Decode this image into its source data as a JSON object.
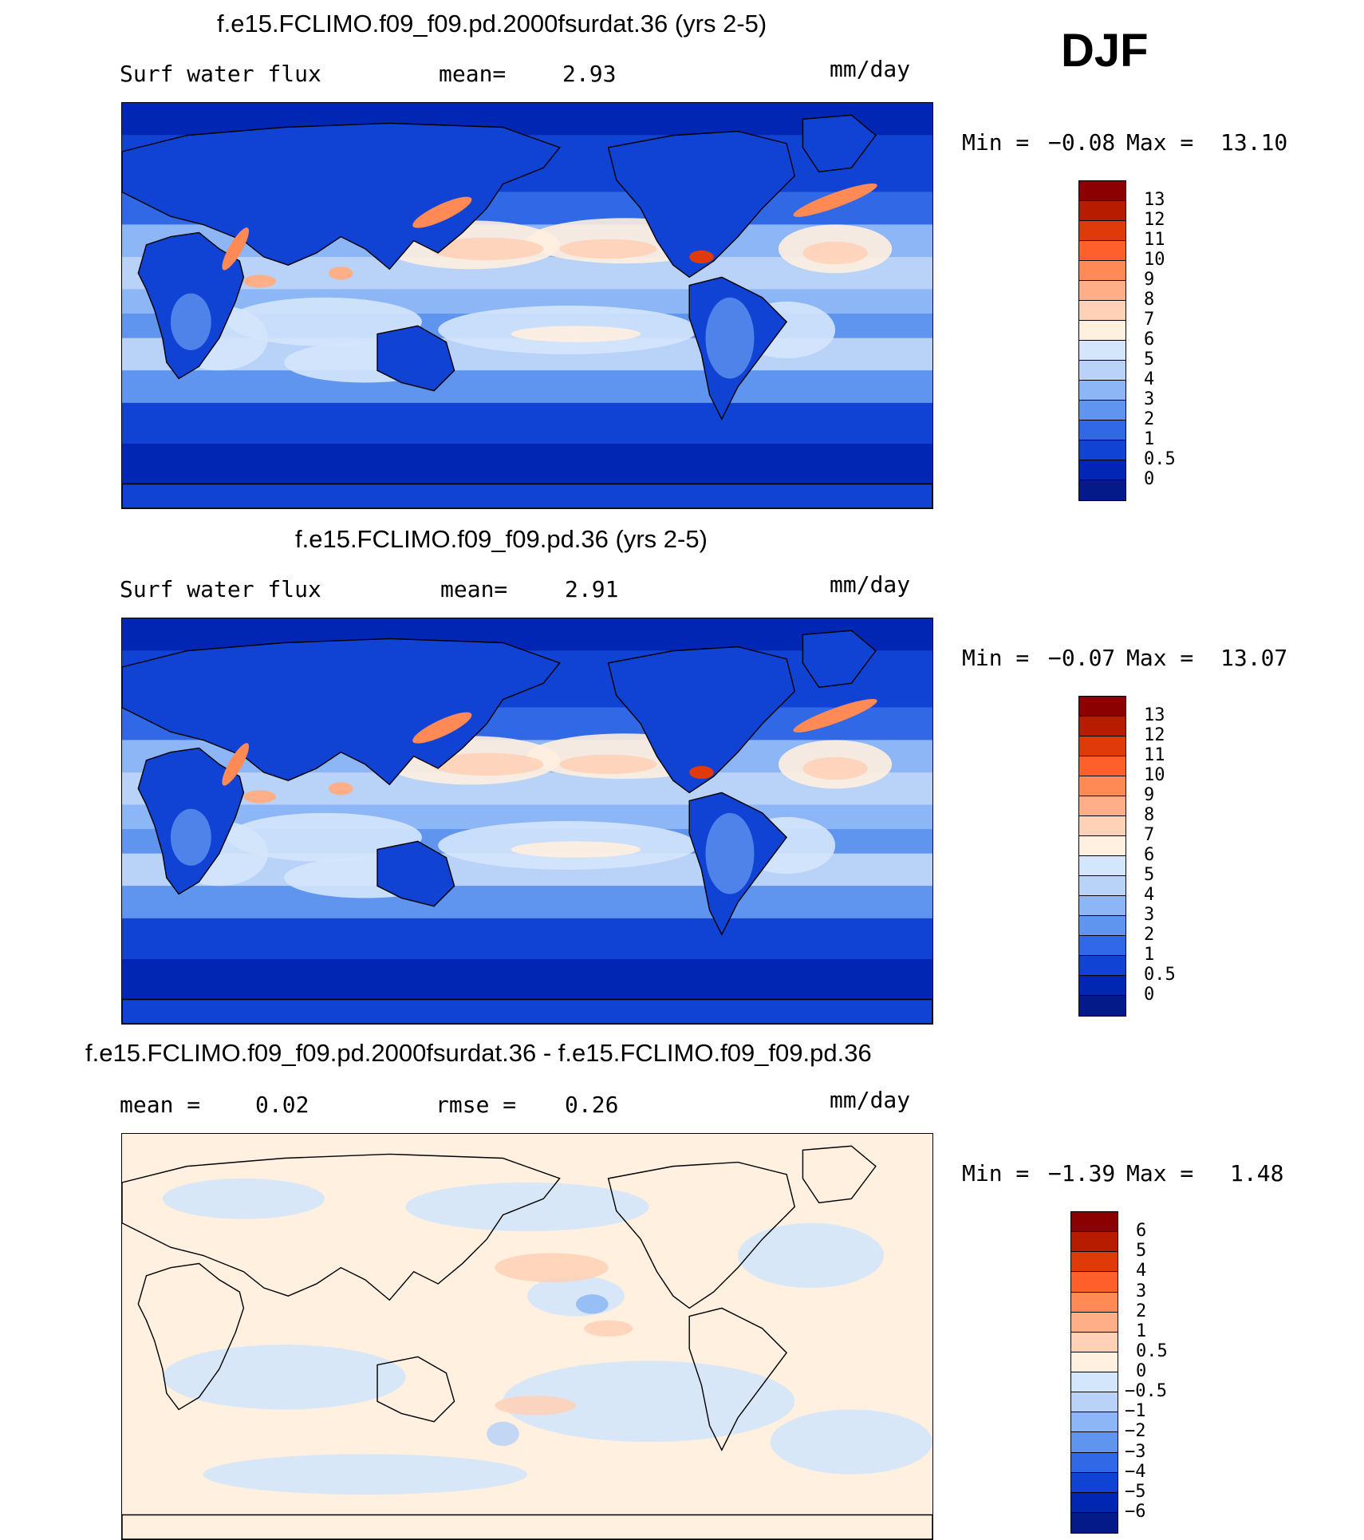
{
  "season": "DJF",
  "chart_data": [
    {
      "type": "heatmap",
      "title": "f.e15.FCLIMO.f09_f09.pd.2000fsurdat.36 (yrs 2-5)",
      "variable": "Surf water flux",
      "mean_label": "mean=",
      "mean_value": "2.93",
      "units": "mm/day",
      "min_label": "Min =",
      "min_value": "−0.08",
      "max_label": "Max =",
      "max_value": "13.10",
      "colorbar_levels": [
        "13",
        "12",
        "11",
        "10",
        "9",
        "8",
        "7",
        "6",
        "5",
        "4",
        "3",
        "2",
        "1",
        "0.5",
        "0"
      ],
      "colorbar_colors": [
        "#8b0000",
        "#b81c00",
        "#e03a0a",
        "#ff5f2a",
        "#ff8a55",
        "#ffaf88",
        "#ffd2b8",
        "#fff0e0",
        "#d4e6fb",
        "#b8d2f8",
        "#8cb6f5",
        "#5f94ef",
        "#3068e6",
        "#1043d4",
        "#0226b4",
        "#041a88"
      ],
      "colorscale_name": "blue-white-red"
    },
    {
      "type": "heatmap",
      "title": "f.e15.FCLIMO.f09_f09.pd.36 (yrs 2-5)",
      "variable": "Surf water flux",
      "mean_label": "mean=",
      "mean_value": "2.91",
      "units": "mm/day",
      "min_label": "Min =",
      "min_value": "−0.07",
      "max_label": "Max =",
      "max_value": "13.07",
      "colorbar_levels": [
        "13",
        "12",
        "11",
        "10",
        "9",
        "8",
        "7",
        "6",
        "5",
        "4",
        "3",
        "2",
        "1",
        "0.5",
        "0"
      ],
      "colorbar_colors": [
        "#8b0000",
        "#b81c00",
        "#e03a0a",
        "#ff5f2a",
        "#ff8a55",
        "#ffaf88",
        "#ffd2b8",
        "#fff0e0",
        "#d4e6fb",
        "#b8d2f8",
        "#8cb6f5",
        "#5f94ef",
        "#3068e6",
        "#1043d4",
        "#0226b4",
        "#041a88"
      ],
      "colorscale_name": "blue-white-red"
    },
    {
      "type": "heatmap",
      "title": "f.e15.FCLIMO.f09_f09.pd.2000fsurdat.36 - f.e15.FCLIMO.f09_f09.pd.36",
      "mean_label": "mean =",
      "mean_value": "0.02",
      "rmse_label": "rmse =",
      "rmse_value": "0.26",
      "units": "mm/day",
      "min_label": "Min =",
      "min_value": "−1.39",
      "max_label": "Max =",
      "max_value": "1.48",
      "colorbar_levels": [
        "6",
        "5",
        "4",
        "3",
        "2",
        "1",
        "0.5",
        "0",
        "−0.5",
        "−1",
        "−2",
        "−3",
        "−4",
        "−5",
        "−6"
      ],
      "colorbar_colors": [
        "#8b0000",
        "#b81c00",
        "#e03a0a",
        "#ff5f2a",
        "#ff8a55",
        "#ffaf88",
        "#ffd2b8",
        "#fff0e0",
        "#d4e6fb",
        "#b8d2f8",
        "#8cb6f5",
        "#5f94ef",
        "#3068e6",
        "#1043d4",
        "#0226b4",
        "#041a88"
      ],
      "colorscale_name": "blue-white-red"
    }
  ]
}
